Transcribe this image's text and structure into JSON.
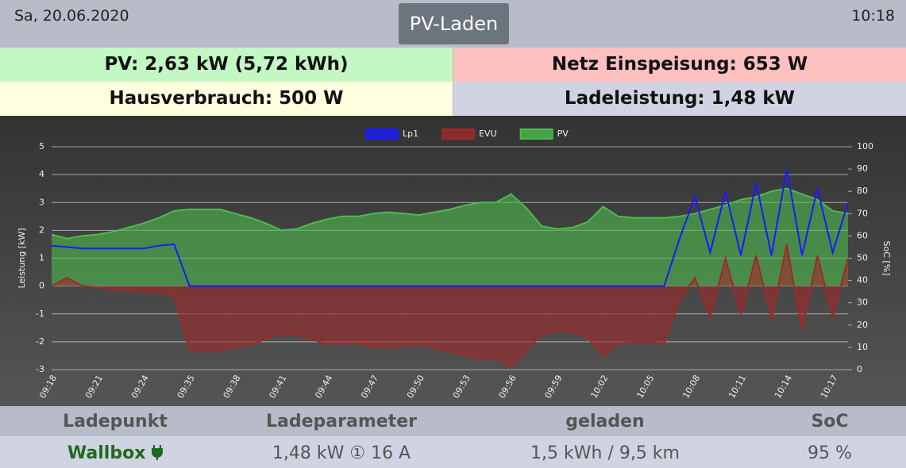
{
  "header": {
    "date": "Sa, 20.06.2020",
    "button": "PV-Laden",
    "time": "10:18"
  },
  "tiles": [
    "PV: 2,63 kW (5,72 kWh)",
    "Netz Einspeisung: 653 W",
    "Hausverbrauch: 500 W",
    "Ladeleistung: 1,48 kW"
  ],
  "chart_data": {
    "type": "area",
    "y_label": "Leistung [kW]",
    "y2_label": "SoC [%]",
    "categories": [
      "09:18",
      null,
      null,
      "09:21",
      null,
      null,
      "09:24",
      null,
      null,
      "09:35",
      null,
      null,
      "09:38",
      null,
      null,
      "09:41",
      null,
      null,
      "09:44",
      null,
      null,
      "09:47",
      null,
      null,
      "09:50",
      null,
      null,
      "09:53",
      null,
      null,
      "09:56",
      null,
      null,
      "09:59",
      null,
      null,
      "10:02",
      null,
      null,
      "10:05",
      null,
      null,
      "10:08",
      null,
      null,
      "10:11",
      null,
      null,
      "10:14",
      null,
      null,
      "10:17",
      null
    ],
    "series": [
      {
        "name": "Lp1",
        "color": "#1a1aff",
        "fill": false,
        "values": [
          1.45,
          1.4,
          1.35,
          1.35,
          1.35,
          1.35,
          1.35,
          1.45,
          1.5,
          0,
          0,
          0,
          0,
          0,
          0,
          0,
          0,
          0,
          0,
          0,
          0,
          0,
          0,
          0,
          0,
          0,
          0,
          0,
          0,
          0,
          0,
          0,
          0,
          0,
          0,
          0,
          0,
          0,
          0,
          0,
          0,
          1.7,
          3.2,
          1.2,
          3.4,
          1.1,
          3.7,
          1.1,
          4.2,
          1.1,
          3.5,
          1.2,
          3.0
        ]
      },
      {
        "name": "EVU",
        "color": "#9e2a2b",
        "fill": true,
        "values": [
          0,
          0.3,
          0,
          -0.05,
          -0.1,
          -0.15,
          -0.2,
          -0.25,
          -0.35,
          -2.3,
          -2.3,
          -2.3,
          -2.2,
          -2.1,
          -1.9,
          -1.7,
          -1.75,
          -1.9,
          -2.1,
          -2.05,
          -2.05,
          -2.2,
          -2.2,
          -2.15,
          -2.1,
          -2.2,
          -2.35,
          -2.5,
          -2.6,
          -2.6,
          -2.9,
          -2.3,
          -1.75,
          -1.6,
          -1.65,
          -1.85,
          -2.5,
          -2.05,
          -2.0,
          -2.0,
          -2.05,
          -0.5,
          0.3,
          -1.1,
          1.0,
          -1.0,
          1.1,
          -1.2,
          1.5,
          -1.6,
          1.1,
          -1.1,
          1.0
        ]
      },
      {
        "name": "PV",
        "color": "#4cbb4c",
        "fill": true,
        "values": [
          1.85,
          1.7,
          1.8,
          1.85,
          1.95,
          2.1,
          2.25,
          2.45,
          2.7,
          2.75,
          2.75,
          2.75,
          2.6,
          2.45,
          2.25,
          2.0,
          2.05,
          2.25,
          2.4,
          2.5,
          2.5,
          2.6,
          2.65,
          2.6,
          2.55,
          2.65,
          2.75,
          2.9,
          3.0,
          3.0,
          3.3,
          2.8,
          2.15,
          2.05,
          2.1,
          2.3,
          2.85,
          2.5,
          2.45,
          2.45,
          2.45,
          2.5,
          2.6,
          2.75,
          2.9,
          3.1,
          3.2,
          3.4,
          3.5,
          3.3,
          3.1,
          2.7,
          2.6
        ]
      }
    ],
    "ylim": [
      -3,
      5
    ],
    "yticks": [
      -3,
      -2,
      -1,
      0,
      1,
      2,
      3,
      4,
      5
    ],
    "y2lim": [
      0,
      100
    ],
    "y2ticks": [
      0,
      10,
      20,
      30,
      40,
      50,
      60,
      70,
      80,
      90,
      100
    ],
    "grid": true,
    "legend": "top"
  },
  "table": {
    "headers": [
      "Ladepunkt",
      "Ladeparameter",
      "geladen",
      "SoC"
    ],
    "rows": [
      [
        "Wallbox",
        "1,48 kW ① 16 A",
        "1,5 kWh / 9,5 km",
        "95 %"
      ]
    ]
  }
}
